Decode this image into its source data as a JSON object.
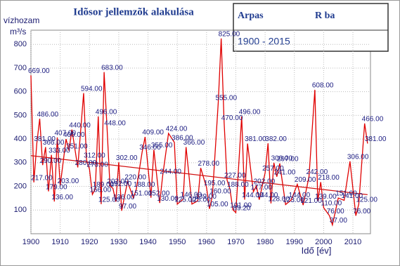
{
  "chart_data": {
    "type": "line",
    "title": "Idõsor jellemzõk alakulása",
    "y_label": "vízhozam",
    "y_unit": "m³/s",
    "x_label": "Idő [év]",
    "info": {
      "station": "Arpas",
      "river": "R ba",
      "period": "1900 - 2015"
    },
    "x": [
      1900,
      1901,
      1902,
      1903,
      1904,
      1905,
      1906,
      1907,
      1908,
      1909,
      1910,
      1912,
      1913,
      1914,
      1916,
      1918,
      1919,
      1920,
      1921,
      1922,
      1923,
      1924,
      1925,
      1926,
      1927,
      1928,
      1929,
      1930,
      1931,
      1933,
      1935,
      1936,
      1938,
      1939,
      1941,
      1942,
      1944,
      1945,
      1947,
      1949,
      1950,
      1952,
      1953,
      1955,
      1957,
      1958,
      1960,
      1961,
      1962,
      1964,
      1965,
      1966,
      1967,
      1968,
      1969,
      1970,
      1972,
      1973,
      1974,
      1976,
      1977,
      1978,
      1980,
      1981,
      1982,
      1983,
      1984,
      1985,
      1987,
      1989,
      1991,
      1993,
      1995,
      1997,
      1998,
      1999,
      2000,
      2002,
      2003,
      2005,
      2007,
      2009,
      2011,
      2012,
      2014,
      2015
    ],
    "values": [
      669,
      217,
      381,
      486,
      290,
      366,
      179,
      333,
      136,
      407,
      203,
      400,
      351,
      440,
      280,
      594,
      312,
      273,
      166,
      189,
      496,
      125,
      683,
      448,
      202,
      192,
      136,
      302,
      97,
      220,
      151,
      188,
      346,
      409,
      152,
      355,
      130,
      244,
      424,
      386,
      125,
      146,
      366,
      125,
      139,
      278,
      195,
      105,
      160,
      555,
      825,
      470,
      227,
      188,
      101,
      89.2,
      496,
      144,
      381,
      177,
      202,
      144,
      257,
      382,
      128,
      300,
      241,
      297,
      123,
      144,
      209,
      121,
      242,
      608,
      139,
      218,
      110,
      76,
      37,
      151,
      141,
      306,
      76,
      125,
      466,
      381
    ],
    "value_labels": [
      "669.00",
      "217.00",
      "381.00",
      "486.00",
      "290.00",
      "366.00",
      "179.00",
      "333.00",
      "136.00",
      "407.00",
      "203.00",
      "400.00",
      "351.00",
      "440.00",
      "280.00",
      "594.00",
      "312.00",
      "273.00",
      "166.00",
      "189.00",
      "496.00",
      "125.00",
      "683.00",
      "448.00",
      "202.00",
      "192.00",
      "136.00",
      "302.00",
      "97.00",
      "220.00",
      "151.00",
      "188.00",
      "346.00",
      "409.00",
      "152.00",
      "355.00",
      "130.00",
      "244.00",
      "424.00",
      "386.00",
      "125.00",
      "146.00",
      "366.00",
      "125.00",
      "139.00",
      "278.00",
      "195.00",
      "105.00",
      "160.00",
      "555.00",
      "825.00",
      "470.00",
      "227.00",
      "188.00",
      "101.00",
      "89.20",
      "496.00",
      "144.00",
      "381.00",
      "177.00",
      "202.00",
      "144.00",
      "257.00",
      "382.00",
      "128.00",
      "300.00",
      "241.00",
      "297.00",
      "123.00",
      "144.00",
      "209.00",
      "121.00",
      "242.00",
      "608.00",
      "139.00",
      "218.00",
      "110.00",
      "76.00",
      "37.00",
      "151.00",
      "141.00",
      "306.00",
      "76.00",
      "125.00",
      "466.00",
      "381.00"
    ],
    "color": "#e00000",
    "trend": {
      "x": [
        1900,
        2015
      ],
      "values": [
        330,
        165
      ],
      "color": "#d01010"
    },
    "xlim": [
      1900,
      2016
    ],
    "xticks": [
      1900,
      1910,
      1920,
      1930,
      1940,
      1950,
      1960,
      1970,
      1980,
      1990,
      2000,
      2010
    ],
    "ylim": [
      0,
      860
    ],
    "yticks": [
      100,
      200,
      300,
      400,
      500,
      600,
      700,
      800
    ],
    "grid": true
  }
}
